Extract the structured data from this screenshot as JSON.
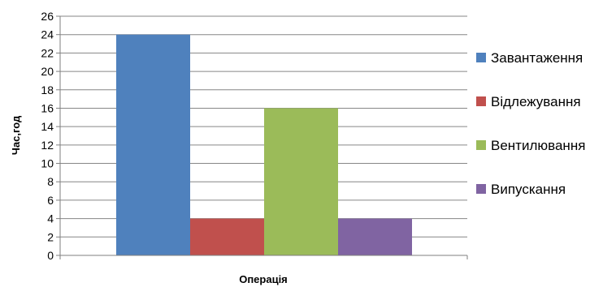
{
  "chart_data": {
    "type": "bar",
    "categories": [
      ""
    ],
    "series": [
      {
        "name": "Завантаження",
        "values": [
          24
        ],
        "color": "#4F81BD"
      },
      {
        "name": "Відлежування",
        "values": [
          4
        ],
        "color": "#C0504D"
      },
      {
        "name": "Вентилювання",
        "values": [
          16
        ],
        "color": "#9BBB59"
      },
      {
        "name": "Випускання",
        "values": [
          4
        ],
        "color": "#8064A2"
      }
    ],
    "title": "",
    "xlabel": "Операція",
    "ylabel": "Час,год",
    "ylim": [
      0,
      26
    ],
    "yticks": [
      "0",
      "2",
      "4",
      "6",
      "8",
      "10",
      "12",
      "14",
      "16",
      "18",
      "20",
      "22",
      "24",
      "26"
    ],
    "grid": true,
    "legend_position": "right"
  }
}
